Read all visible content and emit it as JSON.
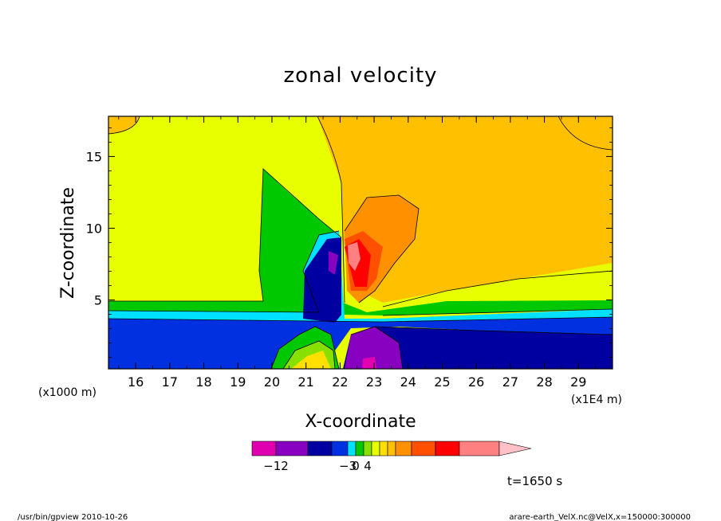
{
  "chart_data": {
    "type": "contour",
    "title": "zonal velocity",
    "xlabel": "X-coordinate",
    "ylabel": "Z-coordinate",
    "x_unit": "(x1E4 m)",
    "y_unit": "(x1000 m)",
    "xlim": [
      15.2,
      30
    ],
    "ylim": [
      0.2,
      17.8
    ],
    "x_ticks": [
      16,
      17,
      18,
      19,
      20,
      21,
      22,
      23,
      24,
      25,
      26,
      27,
      28,
      29
    ],
    "y_ticks": [
      5,
      10,
      15
    ],
    "x_tick_labels": [
      "16",
      "17",
      "18",
      "19",
      "20",
      "21",
      "22",
      "23",
      "24",
      "25",
      "26",
      "27",
      "28",
      "29"
    ],
    "y_tick_labels": [
      "5",
      "10",
      "15"
    ],
    "colorbar": {
      "bins": [
        {
          "color": "#e000b0"
        },
        {
          "color": "#8800c0"
        },
        {
          "color": "#0000a0"
        },
        {
          "color": "#0030e0"
        },
        {
          "color": "#00e0ff"
        },
        {
          "color": "#00c800"
        },
        {
          "color": "#88e000"
        },
        {
          "color": "#e8ff00"
        },
        {
          "color": "#ffe000"
        },
        {
          "color": "#ffc000"
        },
        {
          "color": "#ff9000"
        },
        {
          "color": "#ff5000"
        },
        {
          "color": "#ff0000"
        },
        {
          "color": "#ff8080"
        },
        {
          "color": "#ffc0c8"
        }
      ],
      "labels": [
        {
          "text": "−12",
          "pos": 1
        },
        {
          "text": "−3",
          "pos": 4
        },
        {
          "text": "0",
          "pos": 5
        },
        {
          "text": "4",
          "pos": 6.5
        }
      ]
    },
    "time_label": "t=1650 s"
  },
  "footer": {
    "left": "/usr/bin/gpview  2010-10-26",
    "right": "arare-earth_VelX.nc@VelX,x=150000:300000"
  }
}
